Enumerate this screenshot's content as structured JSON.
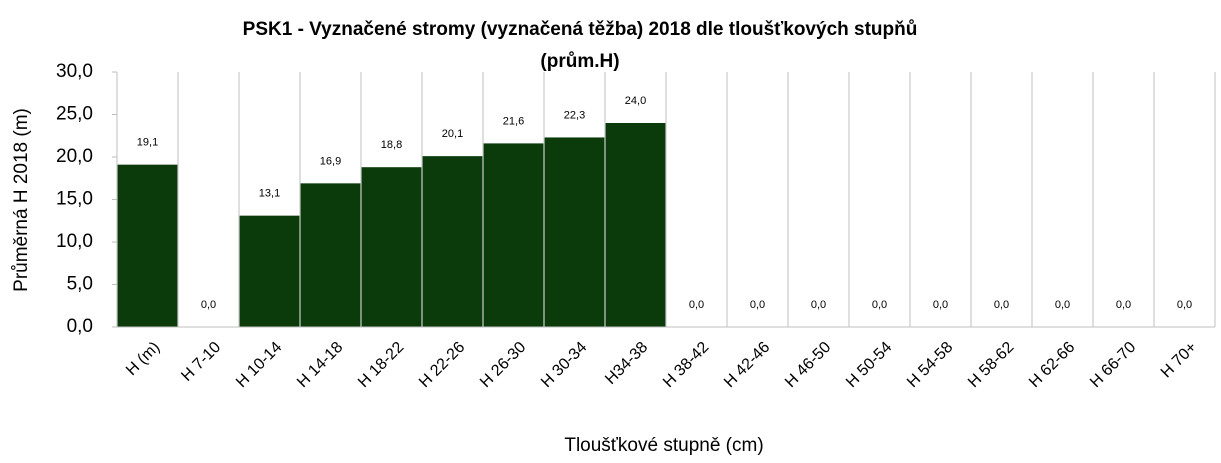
{
  "chart_data": {
    "type": "bar",
    "title": [
      "PSK1 - Vyznačené stromy (vyznačená těžba) 2018 dle tloušťkových stupňů",
      "(prům.H)"
    ],
    "x_label": "Tloušťkové stupně (cm)",
    "y_label": "Průměrná H 2018 (m)",
    "categories": [
      "H (m)",
      "H 7-10",
      "H 10-14",
      "H 14-18",
      "H 18-22",
      "H 22-26",
      "H 26-30",
      "H 30-34",
      "H34-38",
      "H 38-42",
      "H 42-46",
      "H 46-50",
      "H 50-54",
      "H 54-58",
      "H 58-62",
      "H 62-66",
      "H 66-70",
      "H 70+"
    ],
    "values": [
      19.1,
      0,
      13.1,
      16.9,
      18.8,
      20.1,
      21.6,
      22.3,
      24.0,
      0,
      0,
      0,
      0,
      0,
      0,
      0,
      0,
      0
    ],
    "value_labels": [
      "19,1",
      "0,0",
      "13,1",
      "16,9",
      "18,8",
      "20,1",
      "21,6",
      "22,3",
      "24,0",
      "0,0",
      "0,0",
      "0,0",
      "0,0",
      "0,0",
      "0,0",
      "0,0",
      "0,0",
      "0,0"
    ],
    "color": "#0b3a0b",
    "ylim": [
      0,
      30
    ],
    "yticks": [
      {
        "value": 0,
        "label": "0,0"
      },
      {
        "value": 5,
        "label": "5,0"
      },
      {
        "value": 10,
        "label": "10,0"
      },
      {
        "value": 15,
        "label": "15,0"
      },
      {
        "value": 20,
        "label": "20,0"
      },
      {
        "value": 25,
        "label": "25,0"
      },
      {
        "value": 30,
        "label": "30,0"
      }
    ],
    "grid": false
  }
}
